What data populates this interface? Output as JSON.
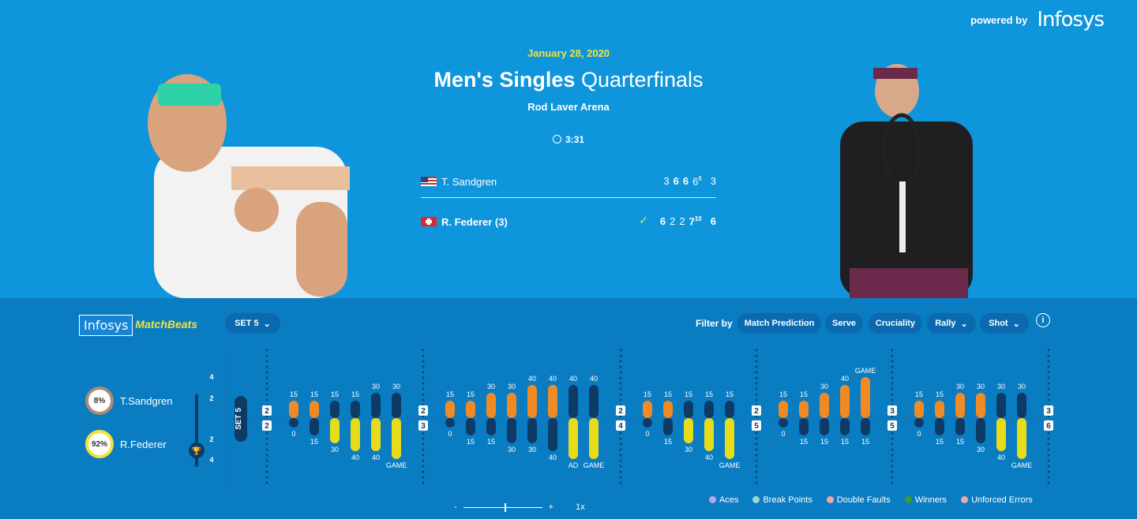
{
  "powered": {
    "label": "powered by",
    "brand": "Infosys"
  },
  "match": {
    "date": "January 28, 2020",
    "title_bold": "Men's Singles",
    "title_rest": "Quarterfinals",
    "venue": "Rod Laver Arena",
    "duration": "3:31"
  },
  "players": [
    {
      "name": "T. Sandgren",
      "flag": "US",
      "sets": [
        "3",
        "6",
        "6",
        "6",
        "3"
      ],
      "tiebreak": "8",
      "bold_sets": [
        1,
        2
      ]
    },
    {
      "name": "R. Federer (3)",
      "flag": "CH",
      "sets": [
        "6",
        "2",
        "2",
        "7",
        "6"
      ],
      "tiebreak": "10",
      "bold_sets": [
        0,
        3,
        4
      ],
      "winner": true
    }
  ],
  "matchbeats": {
    "logo_a": "Infosys",
    "logo_b": "MatchBeats",
    "set_select": "SET 5",
    "filter_label": "Filter by",
    "filters": [
      "Match Prediction",
      "Serve",
      "Cruciality",
      "Rally",
      "Shot"
    ],
    "info": "i",
    "sandgren": {
      "name": "T.Sandgren",
      "win_prob": "8%"
    },
    "federer": {
      "name": "R.Federer",
      "win_prob": "92%"
    },
    "set_marker": "SET 5",
    "axis_ticks": [
      "4",
      "2",
      "2",
      "4"
    ],
    "zoom": {
      "minus": "-",
      "plus": "+",
      "level": "1x"
    },
    "legend": [
      "Aces",
      "Break Points",
      "Double Faults",
      "Winners",
      "Unforced Errors"
    ],
    "colors": {
      "sandgren": "#f08a24",
      "federer": "#e6dc1a",
      "neutral": "#0d3b66",
      "winner": "#3a9b2e",
      "error": "#f2a6a0"
    }
  },
  "chart_data": {
    "type": "bar",
    "title": "",
    "games": [
      {
        "server_score": "2",
        "receiver_score": "2",
        "points": [
          [
            "15",
            "0"
          ],
          [
            "15",
            "15"
          ],
          [
            "15",
            "30"
          ],
          [
            "15",
            "40"
          ],
          [
            "30",
            "40"
          ],
          [
            "30",
            "GAME"
          ]
        ]
      },
      {
        "server_score": "2",
        "receiver_score": "3",
        "points": [
          [
            "15",
            "0"
          ],
          [
            "15",
            "15"
          ],
          [
            "30",
            "15"
          ],
          [
            "30",
            "30"
          ],
          [
            "40",
            "30"
          ],
          [
            "40",
            "40"
          ],
          [
            "40",
            "AD"
          ],
          [
            "40",
            "GAME"
          ]
        ]
      },
      {
        "server_score": "2",
        "receiver_score": "4",
        "points": [
          [
            "15",
            "0"
          ],
          [
            "15",
            "15"
          ],
          [
            "15",
            "30"
          ],
          [
            "15",
            "40"
          ],
          [
            "15",
            "GAME"
          ]
        ]
      },
      {
        "server_score": "2",
        "receiver_score": "5",
        "points": [
          [
            "15",
            "0"
          ],
          [
            "15",
            "15"
          ],
          [
            "30",
            "15"
          ],
          [
            "40",
            "15"
          ],
          [
            "GAME",
            "15"
          ]
        ]
      },
      {
        "server_score": "3",
        "receiver_score": "5",
        "points": [
          [
            "15",
            "0"
          ],
          [
            "15",
            "15"
          ],
          [
            "30",
            "15"
          ],
          [
            "30",
            "30"
          ],
          [
            "30",
            "40"
          ],
          [
            "30",
            "GAME"
          ]
        ]
      },
      {
        "server_score": "3",
        "receiver_score": "6",
        "points": []
      }
    ]
  }
}
